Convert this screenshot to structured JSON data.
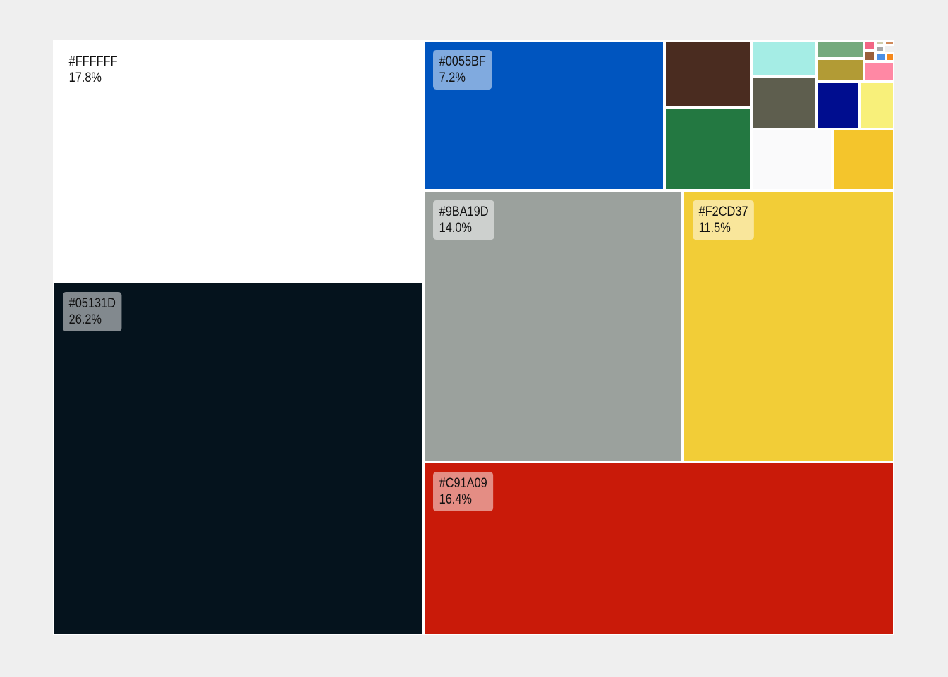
{
  "chart_data": {
    "type": "treemap",
    "title": "",
    "cells": [
      {
        "color": "#FFFFFF",
        "label": "#FFFFFF",
        "percent_label": "17.8%",
        "value": 17.8
      },
      {
        "color": "#05131D",
        "label": "#05131D",
        "percent_label": "26.2%",
        "value": 26.2
      },
      {
        "color": "#0055BF",
        "label": "#0055BF",
        "percent_label": "7.2%",
        "value": 7.2
      },
      {
        "color": "#9BA19D",
        "label": "#9BA19D",
        "percent_label": "14.0%",
        "value": 14.0
      },
      {
        "color": "#F2CD37",
        "label": "#F2CD37",
        "percent_label": "11.5%",
        "value": 11.5
      },
      {
        "color": "#C91A09",
        "label": "#C91A09",
        "percent_label": "16.4%",
        "value": 16.4
      },
      {
        "color": "#4A2C20",
        "value": 1.6
      },
      {
        "color": "#237841",
        "value": 1.6
      },
      {
        "color": "#A5EDE5",
        "value": 0.6
      },
      {
        "color": "#5E5E4E",
        "value": 1.1
      },
      {
        "color": "#FAFAFB",
        "value": 1.3
      },
      {
        "color": "#75AA7D",
        "value": 0.2
      },
      {
        "color": "#B29B35",
        "value": 0.3
      },
      {
        "color": "#000D8F",
        "value": 0.6
      },
      {
        "color": "#F8F07A",
        "value": 0.6
      },
      {
        "color": "#F4C52C",
        "value": 1.0
      },
      {
        "color": "#F26684",
        "value": 0.04
      },
      {
        "color": "#D0CCAA",
        "value": 0.02
      },
      {
        "color": "#D08A5A",
        "value": 0.01
      },
      {
        "color": "#9A5F3A",
        "value": 0.05
      },
      {
        "color": "#A8A8A8",
        "value": 0.03
      },
      {
        "color": "#4B8FE6",
        "value": 0.06
      },
      {
        "color": "#F5881C",
        "value": 0.04
      },
      {
        "color": "#FF88A4",
        "value": 0.2
      }
    ]
  }
}
